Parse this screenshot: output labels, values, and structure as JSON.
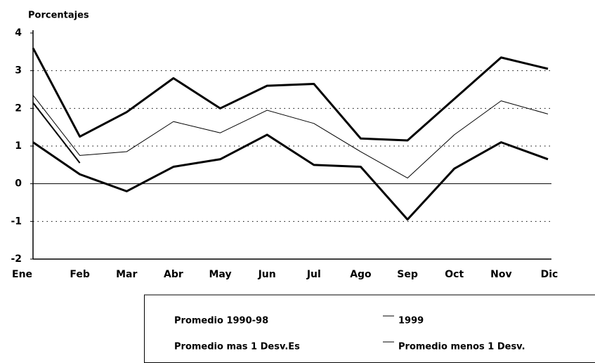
{
  "chart_data": {
    "type": "line",
    "title": "Porcentajes",
    "categories": [
      "Ene",
      "Feb",
      "Mar",
      "Abr",
      "May",
      "Jun",
      "Jul",
      "Ago",
      "Sep",
      "Oct",
      "Nov",
      "Dic"
    ],
    "series": [
      {
        "name": "Promedio 1990-98",
        "color": "#000000",
        "width": 1,
        "values": [
          2.35,
          0.75,
          0.85,
          1.65,
          1.35,
          1.95,
          1.6,
          0.85,
          0.15,
          1.3,
          2.2,
          1.85
        ]
      },
      {
        "name": "1999",
        "color": "#000000",
        "width": 2,
        "values": [
          2.15,
          0.55,
          null,
          null,
          null,
          null,
          null,
          null,
          null,
          null,
          null,
          null
        ]
      },
      {
        "name": "Promedio mas 1 Desv.Es",
        "color": "#000000",
        "width": 3,
        "values": [
          3.6,
          1.25,
          1.9,
          2.8,
          2.0,
          2.6,
          2.65,
          1.2,
          1.15,
          2.25,
          3.35,
          3.05
        ]
      },
      {
        "name": "Promedio menos 1 Desv.",
        "color": "#000000",
        "width": 3,
        "values": [
          1.1,
          0.25,
          -0.2,
          0.45,
          0.65,
          1.3,
          0.5,
          0.45,
          -0.95,
          0.4,
          1.1,
          0.65
        ]
      }
    ],
    "ylim": [
      -2,
      4
    ],
    "yticks": [
      -2,
      -1,
      0,
      1,
      2,
      3,
      4
    ],
    "grid": true
  }
}
